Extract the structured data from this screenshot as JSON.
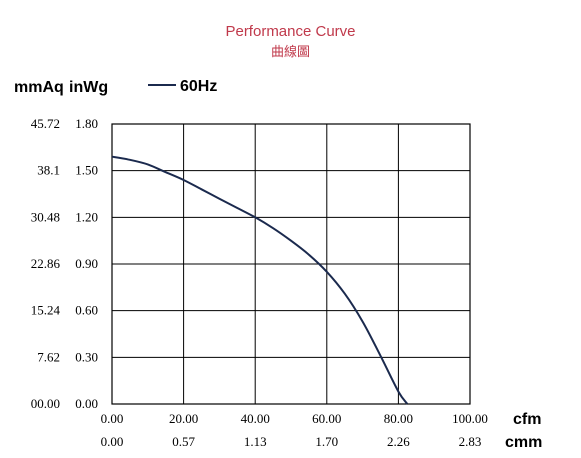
{
  "header": {
    "title": "Performance Curve",
    "subtitle": "曲線圖"
  },
  "units": {
    "y_left": "mmAq",
    "y_right": "inWg",
    "x_top": "cfm",
    "x_bottom": "cmm"
  },
  "colors": {
    "title": "#c0394b",
    "curve": "#1b2a4e",
    "grid": "#000000"
  },
  "chart_data": {
    "type": "line",
    "title": "Performance Curve",
    "subtitle": "曲線圖",
    "xlabel": "cfm",
    "xlabel_secondary": "cmm",
    "ylabel": "inWg",
    "ylabel_secondary": "mmAq",
    "xlim": [
      0,
      100
    ],
    "ylim": [
      0,
      1.8
    ],
    "grid": true,
    "legend": "top-left",
    "x_ticks": [
      "0.00",
      "20.00",
      "40.00",
      "60.00",
      "80.00",
      "100.00"
    ],
    "x_ticks_secondary": [
      "0.00",
      "0.57",
      "1.13",
      "1.70",
      "2.26",
      "2.83"
    ],
    "y_ticks": [
      "0.00",
      "0.30",
      "0.60",
      "0.90",
      "1.20",
      "1.50",
      "1.80"
    ],
    "y_ticks_secondary": [
      "00.00",
      "7.62",
      "15.24",
      "22.86",
      "30.48",
      "38.1",
      "45.72"
    ],
    "series": [
      {
        "name": "60Hz",
        "x": [
          0,
          5,
          10,
          15,
          20,
          25,
          30,
          35,
          40,
          45,
          50,
          55,
          60,
          65,
          70,
          75,
          80,
          82.5
        ],
        "y": [
          1.59,
          1.57,
          1.54,
          1.49,
          1.44,
          1.38,
          1.32,
          1.26,
          1.2,
          1.13,
          1.05,
          0.96,
          0.85,
          0.71,
          0.53,
          0.31,
          0.08,
          0
        ]
      }
    ]
  }
}
